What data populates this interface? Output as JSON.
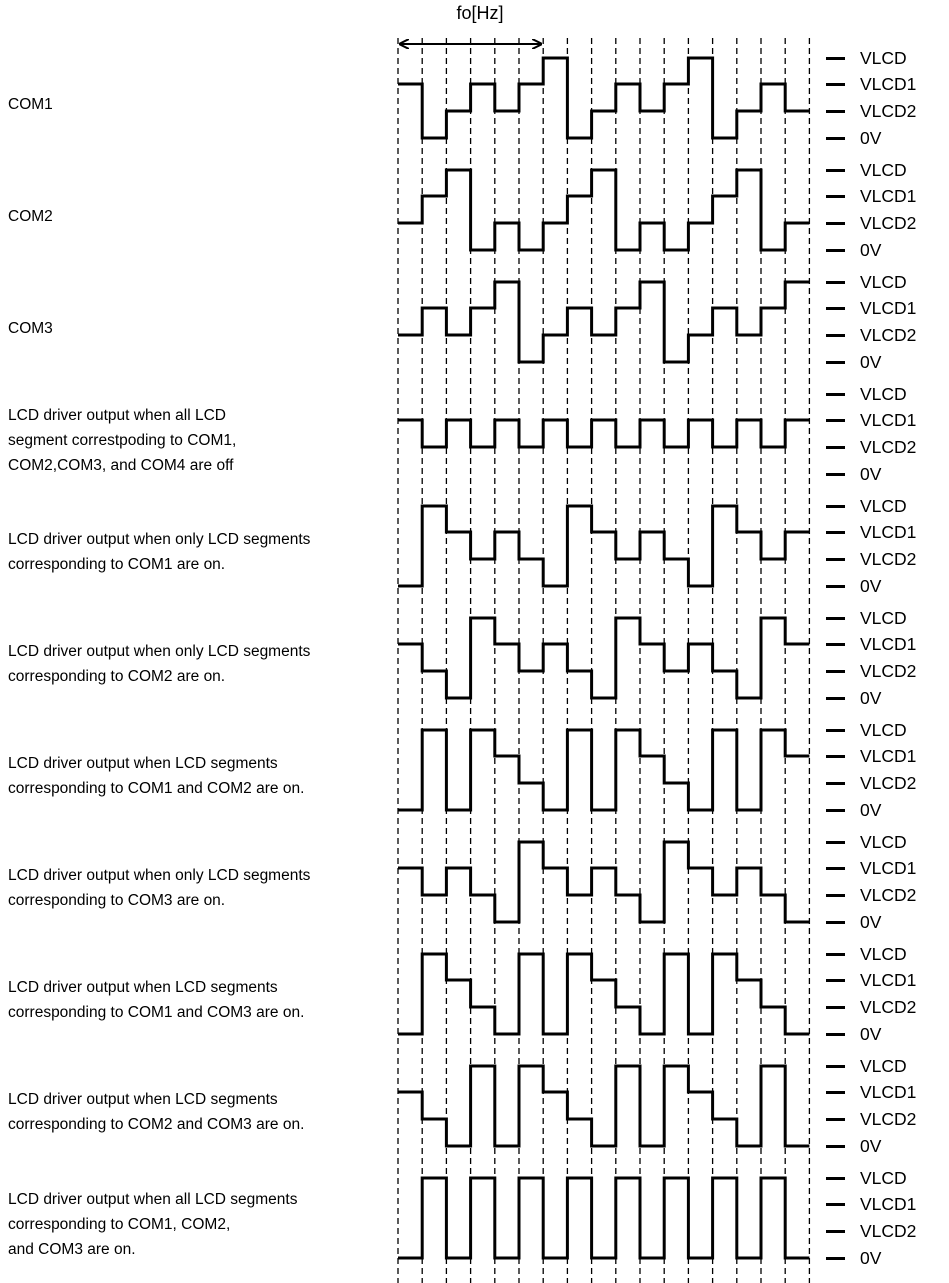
{
  "frequency_label": "fo[Hz]",
  "level_labels": [
    "VLCD",
    "VLCD1",
    "VLCD2",
    "0V"
  ],
  "level_values": [
    3,
    2,
    1,
    0
  ],
  "waveforms": [
    {
      "label_lines": [
        "COM1"
      ],
      "levels": [
        2,
        0,
        1,
        2,
        1,
        2,
        3,
        0,
        1,
        2,
        1,
        2,
        3,
        0,
        1,
        2,
        1
      ]
    },
    {
      "label_lines": [
        "COM2"
      ],
      "levels": [
        1,
        2,
        3,
        0,
        1,
        0,
        1,
        2,
        3,
        0,
        1,
        0,
        1,
        2,
        3,
        0,
        1
      ]
    },
    {
      "label_lines": [
        "COM3"
      ],
      "levels": [
        1,
        2,
        1,
        2,
        3,
        0,
        1,
        2,
        1,
        2,
        3,
        0,
        1,
        2,
        1,
        2,
        3
      ]
    },
    {
      "label_lines": [
        "LCD driver output when all LCD",
        "segment correstpoding to COM1,",
        "COM2,COM3, and COM4 are off"
      ],
      "levels": [
        2,
        1,
        2,
        1,
        2,
        1,
        2,
        1,
        2,
        1,
        2,
        1,
        2,
        1,
        2,
        1,
        2
      ]
    },
    {
      "label_lines": [
        "LCD driver output when only LCD segments",
        "corresponding to COM1 are on."
      ],
      "levels": [
        0,
        3,
        2,
        1,
        2,
        1,
        0,
        3,
        2,
        1,
        2,
        1,
        0,
        3,
        2,
        1,
        2
      ]
    },
    {
      "label_lines": [
        "LCD driver output when only LCD segments",
        "corresponding to COM2 are on."
      ],
      "levels": [
        2,
        1,
        0,
        3,
        2,
        1,
        2,
        1,
        0,
        3,
        2,
        1,
        2,
        1,
        0,
        3,
        2
      ]
    },
    {
      "label_lines": [
        "LCD driver output when LCD segments",
        "corresponding to COM1 and COM2 are on."
      ],
      "levels": [
        0,
        3,
        0,
        3,
        2,
        1,
        0,
        3,
        0,
        3,
        2,
        1,
        0,
        3,
        0,
        3,
        2
      ]
    },
    {
      "label_lines": [
        "LCD driver output when only LCD segments",
        "corresponding to COM3 are on."
      ],
      "levels": [
        2,
        1,
        2,
        1,
        0,
        3,
        2,
        1,
        2,
        1,
        0,
        3,
        2,
        1,
        2,
        1,
        0
      ]
    },
    {
      "label_lines": [
        "LCD driver output when LCD segments",
        "corresponding to COM1 and COM3 are on."
      ],
      "levels": [
        0,
        3,
        2,
        1,
        0,
        3,
        0,
        3,
        2,
        1,
        0,
        3,
        0,
        3,
        2,
        1,
        0
      ]
    },
    {
      "label_lines": [
        "LCD driver output when LCD segments",
        "corresponding to COM2 and COM3 are on."
      ],
      "levels": [
        2,
        1,
        0,
        3,
        0,
        3,
        2,
        1,
        0,
        3,
        0,
        3,
        2,
        1,
        0,
        3,
        0
      ]
    },
    {
      "label_lines": [
        "LCD driver output when all LCD segments",
        "corresponding to COM1, COM2,",
        "and COM3 are on."
      ],
      "levels": [
        0,
        3,
        0,
        3,
        0,
        3,
        0,
        3,
        0,
        3,
        0,
        3,
        0,
        3,
        0,
        3,
        0
      ]
    }
  ]
}
